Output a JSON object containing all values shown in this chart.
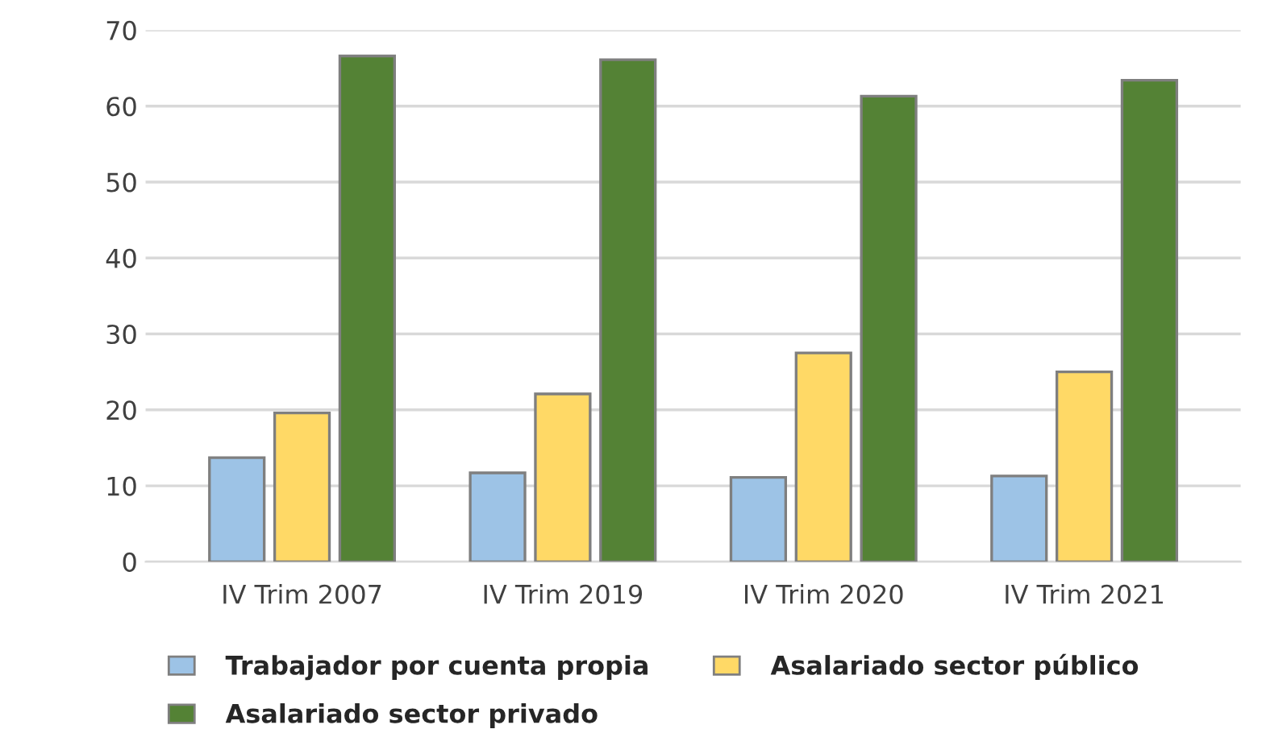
{
  "chart_data": {
    "type": "bar",
    "categories": [
      "IV Trim 2007",
      "IV Trim 2019",
      "IV Trim 2020",
      "IV Trim 2021"
    ],
    "series": [
      {
        "name": "Trabajador por cuenta propia",
        "color": "#9dc3e6",
        "values": [
          13.7,
          11.7,
          11.1,
          11.3
        ]
      },
      {
        "name": "Asalariado sector público",
        "color": "#ffd966",
        "values": [
          19.6,
          22.1,
          27.5,
          25.0
        ]
      },
      {
        "name": "Asalariado sector privado",
        "color": "#548235",
        "values": [
          66.6,
          66.1,
          61.3,
          63.4
        ]
      }
    ],
    "ylim": [
      0,
      70
    ],
    "yticks": [
      0,
      10,
      20,
      30,
      40,
      50,
      60,
      70
    ],
    "grid": "y",
    "legend": "bottom"
  }
}
